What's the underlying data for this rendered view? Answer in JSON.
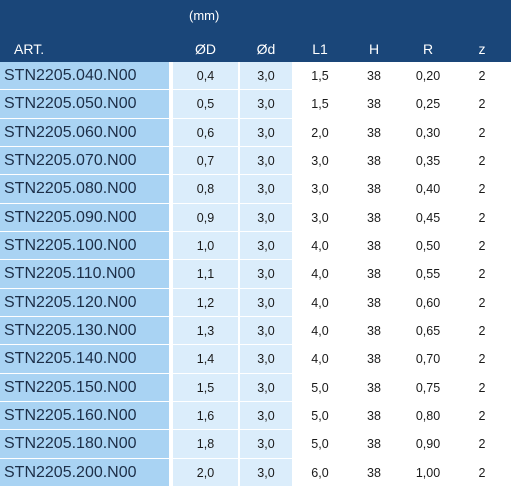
{
  "header": {
    "unit": "(mm)",
    "columns": [
      "ART.",
      "ØD",
      "Ød",
      "L1",
      "H",
      "R",
      "z"
    ]
  },
  "rows": [
    {
      "art": "STN2205.040.N00",
      "od": "0,4",
      "d": "3,0",
      "l1": "1,5",
      "h": "38",
      "r": "0,20",
      "z": "2"
    },
    {
      "art": "STN2205.050.N00",
      "od": "0,5",
      "d": "3,0",
      "l1": "1,5",
      "h": "38",
      "r": "0,25",
      "z": "2"
    },
    {
      "art": "STN2205.060.N00",
      "od": "0,6",
      "d": "3,0",
      "l1": "2,0",
      "h": "38",
      "r": "0,30",
      "z": "2"
    },
    {
      "art": "STN2205.070.N00",
      "od": "0,7",
      "d": "3,0",
      "l1": "3,0",
      "h": "38",
      "r": "0,35",
      "z": "2"
    },
    {
      "art": "STN2205.080.N00",
      "od": "0,8",
      "d": "3,0",
      "l1": "3,0",
      "h": "38",
      "r": "0,40",
      "z": "2"
    },
    {
      "art": "STN2205.090.N00",
      "od": "0,9",
      "d": "3,0",
      "l1": "3,0",
      "h": "38",
      "r": "0,45",
      "z": "2"
    },
    {
      "art": "STN2205.100.N00",
      "od": "1,0",
      "d": "3,0",
      "l1": "4,0",
      "h": "38",
      "r": "0,50",
      "z": "2"
    },
    {
      "art": "STN2205.110.N00",
      "od": "1,1",
      "d": "3,0",
      "l1": "4,0",
      "h": "38",
      "r": "0,55",
      "z": "2"
    },
    {
      "art": "STN2205.120.N00",
      "od": "1,2",
      "d": "3,0",
      "l1": "4,0",
      "h": "38",
      "r": "0,60",
      "z": "2"
    },
    {
      "art": "STN2205.130.N00",
      "od": "1,3",
      "d": "3,0",
      "l1": "4,0",
      "h": "38",
      "r": "0,65",
      "z": "2"
    },
    {
      "art": "STN2205.140.N00",
      "od": "1,4",
      "d": "3,0",
      "l1": "4,0",
      "h": "38",
      "r": "0,70",
      "z": "2"
    },
    {
      "art": "STN2205.150.N00",
      "od": "1,5",
      "d": "3,0",
      "l1": "5,0",
      "h": "38",
      "r": "0,75",
      "z": "2"
    },
    {
      "art": "STN2205.160.N00",
      "od": "1,6",
      "d": "3,0",
      "l1": "5,0",
      "h": "38",
      "r": "0,80",
      "z": "2"
    },
    {
      "art": "STN2205.180.N00",
      "od": "1,8",
      "d": "3,0",
      "l1": "5,0",
      "h": "38",
      "r": "0,90",
      "z": "2"
    },
    {
      "art": "STN2205.200.N00",
      "od": "2,0",
      "d": "3,0",
      "l1": "6,0",
      "h": "38",
      "r": "1,00",
      "z": "2"
    }
  ]
}
